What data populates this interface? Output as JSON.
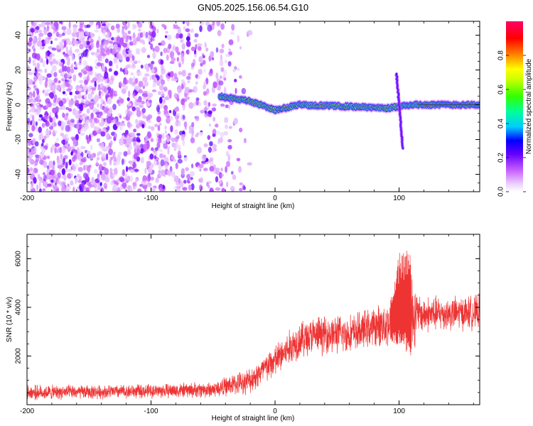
{
  "figure": {
    "title": "GN05.2025.156.06.54.G10"
  },
  "chart_data": [
    {
      "type": "heatmap",
      "name": "spectrogram",
      "xlabel": "Height of straight line (km)",
      "ylabel": "Frequency (Hz)",
      "xlim": [
        -200,
        165
      ],
      "ylim": [
        -50,
        48
      ],
      "x_ticks": [
        -200,
        -100,
        0,
        100
      ],
      "y_ticks": [
        -40,
        -20,
        0,
        20,
        40
      ],
      "colorbar": {
        "label": "Normalized spectral amplitude",
        "range": [
          0,
          1
        ],
        "ticks": [
          0.0,
          0.2,
          0.4,
          0.6,
          0.8
        ],
        "tick_labels": [
          "0.0",
          "0.2",
          "0.4",
          "0.6",
          "0.8"
        ],
        "colors": [
          "#ffffff",
          "#cc66ff",
          "#6600ff",
          "#0000ff",
          "#00ccff",
          "#00ff66",
          "#66ff00",
          "#ffff00",
          "#ff6600",
          "#ff0000",
          "#ff0066"
        ]
      },
      "regions": {
        "noise_region": {
          "x_from": -200,
          "x_to": -20,
          "freq_from": -50,
          "freq_to": 48,
          "level": "low (0.1-0.3)"
        },
        "carrier_track": [
          {
            "x": -45,
            "freq": 5
          },
          {
            "x": -20,
            "freq": 2
          },
          {
            "x": 0,
            "freq": -3
          },
          {
            "x": 20,
            "freq": 0
          },
          {
            "x": 60,
            "freq": -1
          },
          {
            "x": 90,
            "freq": -2
          },
          {
            "x": 110,
            "freq": 0
          },
          {
            "x": 165,
            "freq": 0
          }
        ],
        "transient": {
          "x": 100,
          "freq_from": -25,
          "freq_to": 18
        }
      }
    },
    {
      "type": "line",
      "name": "snr",
      "xlabel": "Height of straight line (km)",
      "ylabel": "SNR (10 * v/v)",
      "xlim": [
        -200,
        165
      ],
      "ylim": [
        0,
        7000
      ],
      "x_ticks": [
        -200,
        -100,
        0,
        100
      ],
      "y_ticks": [
        2000,
        4000,
        6000
      ],
      "color": "#ee3333",
      "envelope": [
        {
          "x": -200,
          "mean": 500,
          "noise": 350
        },
        {
          "x": -150,
          "mean": 520,
          "noise": 330
        },
        {
          "x": -100,
          "mean": 560,
          "noise": 330
        },
        {
          "x": -50,
          "mean": 620,
          "noise": 380
        },
        {
          "x": -20,
          "mean": 1000,
          "noise": 600
        },
        {
          "x": 0,
          "mean": 1800,
          "noise": 800
        },
        {
          "x": 20,
          "mean": 2700,
          "noise": 900
        },
        {
          "x": 40,
          "mean": 2900,
          "noise": 900
        },
        {
          "x": 60,
          "mean": 2900,
          "noise": 900
        },
        {
          "x": 80,
          "mean": 3200,
          "noise": 900
        },
        {
          "x": 95,
          "mean": 3400,
          "noise": 1200
        },
        {
          "x": 100,
          "mean": 3800,
          "noise": 2500
        },
        {
          "x": 108,
          "mean": 3800,
          "noise": 2800
        },
        {
          "x": 115,
          "mean": 3700,
          "noise": 900
        },
        {
          "x": 140,
          "mean": 3750,
          "noise": 800
        },
        {
          "x": 165,
          "mean": 3800,
          "noise": 800
        }
      ]
    }
  ]
}
